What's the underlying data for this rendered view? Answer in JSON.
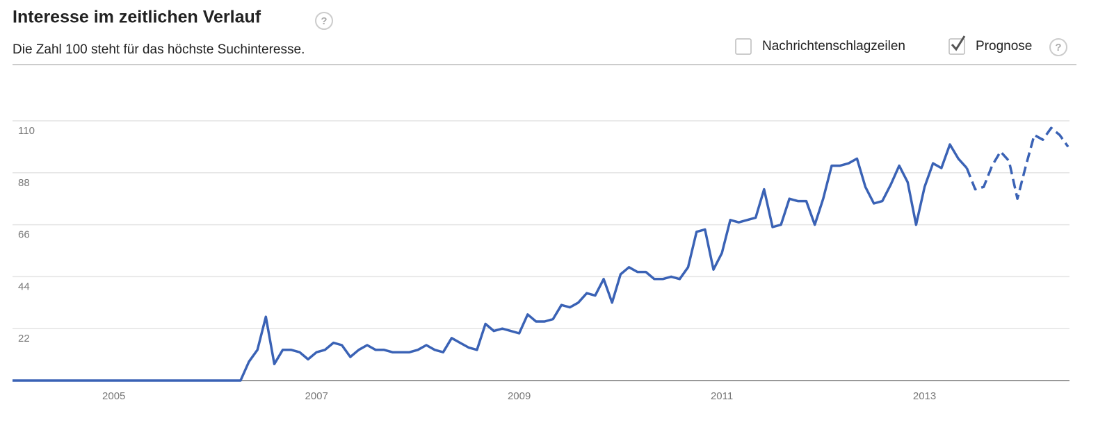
{
  "header": {
    "title": "Interesse im zeitlichen Verlauf",
    "title_help": "?",
    "subtitle": "Die Zahl 100 steht für das höchste Suchinteresse.",
    "options": [
      {
        "label": "Nachrichtenschlagzeilen",
        "checked": false
      },
      {
        "label": "Prognose",
        "checked": true
      }
    ],
    "options_help": "?"
  },
  "chart_data": {
    "type": "line",
    "categories": [
      null,
      null,
      null,
      null,
      null,
      null,
      null,
      null,
      null,
      null,
      null,
      null,
      "2005",
      null,
      null,
      null,
      null,
      null,
      null,
      null,
      null,
      null,
      null,
      null,
      null,
      null,
      null,
      null,
      null,
      null,
      null,
      null,
      null,
      null,
      null,
      null,
      "2007",
      null,
      null,
      null,
      null,
      null,
      null,
      null,
      null,
      null,
      null,
      null,
      null,
      null,
      null,
      null,
      null,
      null,
      null,
      null,
      null,
      null,
      null,
      null,
      "2009",
      null,
      null,
      null,
      null,
      null,
      null,
      null,
      null,
      null,
      null,
      null,
      null,
      null,
      null,
      null,
      null,
      null,
      null,
      null,
      null,
      null,
      null,
      null,
      "2011",
      null,
      null,
      null,
      null,
      null,
      null,
      null,
      null,
      null,
      null,
      null,
      null,
      null,
      null,
      null,
      null,
      null,
      null,
      null,
      null,
      null,
      null,
      null,
      "2013",
      null,
      null,
      null,
      null,
      null,
      null,
      null,
      null,
      null,
      null,
      null,
      null,
      null,
      null,
      null,
      null,
      null
    ],
    "series": [
      {
        "color": "#3a62b5",
        "dashed": false,
        "values": [
          0,
          0,
          0,
          0,
          0,
          0,
          0,
          0,
          0,
          0,
          0,
          0,
          0,
          0,
          0,
          0,
          0,
          0,
          0,
          0,
          0,
          0,
          0,
          0,
          0,
          0,
          0,
          0,
          8,
          13,
          27,
          7,
          13,
          13,
          12,
          9,
          12,
          13,
          16,
          15,
          10,
          13,
          15,
          13,
          13,
          12,
          12,
          12,
          13,
          15,
          13,
          12,
          18,
          16,
          14,
          13,
          24,
          21,
          22,
          21,
          20,
          28,
          25,
          25,
          26,
          32,
          31,
          33,
          37,
          36,
          43,
          33,
          45,
          48,
          46,
          46,
          43,
          43,
          44,
          43,
          48,
          63,
          64,
          47,
          54,
          68,
          67,
          68,
          69,
          81,
          65,
          66,
          77,
          76,
          76,
          66,
          77,
          91,
          91,
          92,
          94,
          82,
          75,
          76,
          83,
          91,
          84,
          66,
          82,
          92,
          90,
          100,
          94,
          90,
          null,
          null,
          null,
          null,
          null,
          null,
          null,
          null,
          null,
          null,
          null,
          null
        ]
      },
      {
        "color": "#3a62b5",
        "dashed": true,
        "values": [
          null,
          null,
          null,
          null,
          null,
          null,
          null,
          null,
          null,
          null,
          null,
          null,
          null,
          null,
          null,
          null,
          null,
          null,
          null,
          null,
          null,
          null,
          null,
          null,
          null,
          null,
          null,
          null,
          null,
          null,
          null,
          null,
          null,
          null,
          null,
          null,
          null,
          null,
          null,
          null,
          null,
          null,
          null,
          null,
          null,
          null,
          null,
          null,
          null,
          null,
          null,
          null,
          null,
          null,
          null,
          null,
          null,
          null,
          null,
          null,
          null,
          null,
          null,
          null,
          null,
          null,
          null,
          null,
          null,
          null,
          null,
          null,
          null,
          null,
          null,
          null,
          null,
          null,
          null,
          null,
          null,
          null,
          null,
          null,
          null,
          null,
          null,
          null,
          null,
          null,
          null,
          null,
          null,
          null,
          null,
          null,
          null,
          null,
          null,
          null,
          null,
          null,
          null,
          null,
          null,
          null,
          null,
          null,
          null,
          null,
          null,
          null,
          null,
          90,
          81,
          82,
          91,
          97,
          93,
          77,
          91,
          104,
          102,
          107,
          104,
          99
        ]
      }
    ],
    "ylim": [
      0,
      110
    ],
    "yticks": [
      22,
      44,
      66,
      88,
      110
    ],
    "grid": true
  }
}
